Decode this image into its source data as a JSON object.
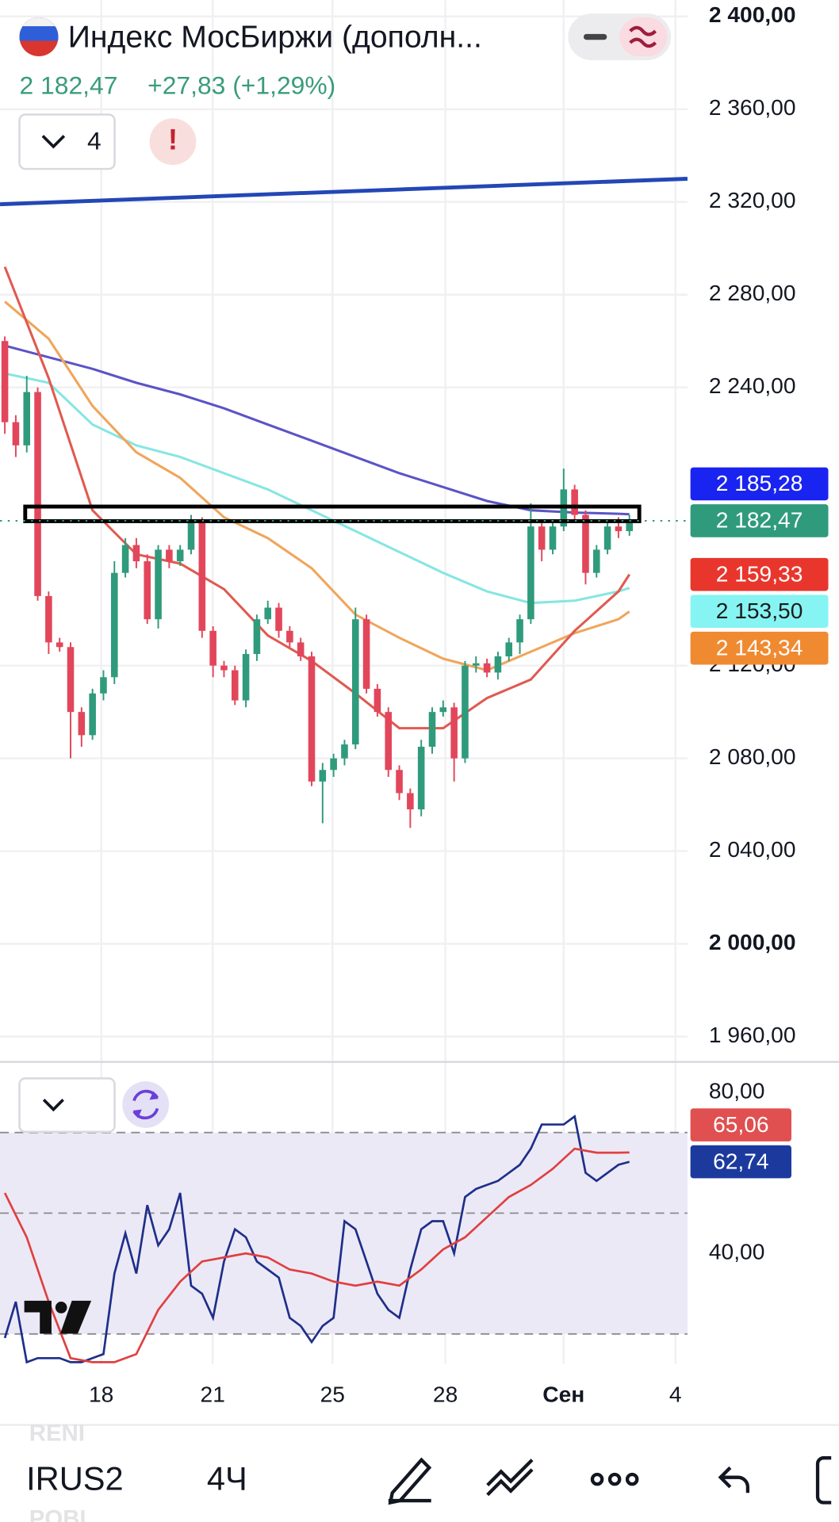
{
  "header": {
    "title": "Индекс МосБиржи (дополн...",
    "price": "2 182,47",
    "change": "+27,83 (+1,29%)",
    "indicators_count": "4",
    "alert": "!"
  },
  "chart_data": [
    {
      "type": "candlestick",
      "xlim": [
        -0.44,
        62.3
      ],
      "xticks": [
        {
          "value": 8.8,
          "label": "18"
        },
        {
          "value": 18.97,
          "label": "21"
        },
        {
          "value": 29.9,
          "label": "25"
        },
        {
          "value": 40.2,
          "label": "28"
        },
        {
          "value": 51,
          "label": "Сен"
        },
        {
          "value": 61.2,
          "label": "4"
        }
      ],
      "ylim": [
        1949.9,
        2407.1
      ],
      "yticks": [
        {
          "value": 2400,
          "label": "2 400,00"
        },
        {
          "value": 2360,
          "label": "2 360,00"
        },
        {
          "value": 2320,
          "label": "2 320,00"
        },
        {
          "value": 2280,
          "label": "2 280,00"
        },
        {
          "value": 2240,
          "label": "2 240,00"
        },
        {
          "value": 2120,
          "label": "2 120,00"
        },
        {
          "value": 2080,
          "label": "2 080,00"
        },
        {
          "value": 2040,
          "label": "2 040,00"
        },
        {
          "value": 2000,
          "label": "2 000,00"
        },
        {
          "value": 1960,
          "label": "1 960,00"
        }
      ],
      "grid": true,
      "up_color": "#2f9b7c",
      "down_color": "#e2465b",
      "open": [
        2260,
        2225,
        2215,
        2238,
        2150,
        2130,
        2128,
        2100,
        2090,
        2108,
        2115,
        2160,
        2172,
        2165,
        2140,
        2170,
        2165,
        2170,
        2182,
        2135,
        2120,
        2118,
        2105,
        2125,
        2140,
        2145,
        2135,
        2130,
        2124,
        2070,
        2075,
        2080,
        2086,
        2140,
        2110,
        2100,
        2075,
        2065,
        2058,
        2085,
        2100,
        2102,
        2080,
        2120,
        2121,
        2117,
        2124,
        2130,
        2140,
        2180,
        2170,
        2180,
        2196,
        2185,
        2160,
        2170,
        2180,
        2178
      ],
      "high": [
        2262,
        2228,
        2245,
        2240,
        2152,
        2132,
        2130,
        2102,
        2110,
        2118,
        2165,
        2175,
        2175,
        2168,
        2172,
        2172,
        2172,
        2185,
        2184,
        2137,
        2122,
        2120,
        2127,
        2142,
        2148,
        2147,
        2137,
        2132,
        2126,
        2078,
        2082,
        2088,
        2145,
        2142,
        2112,
        2102,
        2077,
        2067,
        2088,
        2102,
        2105,
        2104,
        2122,
        2124,
        2123,
        2126,
        2132,
        2142,
        2190,
        2182,
        2183,
        2205,
        2198,
        2187,
        2172,
        2182,
        2184,
        2185
      ],
      "low": [
        2220,
        2210,
        2212,
        2148,
        2125,
        2126,
        2080,
        2085,
        2088,
        2105,
        2112,
        2158,
        2162,
        2138,
        2136,
        2162,
        2163,
        2168,
        2132,
        2115,
        2115,
        2103,
        2102,
        2122,
        2138,
        2132,
        2128,
        2122,
        2068,
        2052,
        2072,
        2077,
        2084,
        2108,
        2098,
        2072,
        2062,
        2050,
        2055,
        2082,
        2098,
        2070,
        2078,
        2117,
        2115,
        2114,
        2122,
        2125,
        2138,
        2165,
        2168,
        2178,
        2183,
        2155,
        2158,
        2168,
        2175,
        2176
      ],
      "close": [
        2225,
        2215,
        2238,
        2150,
        2130,
        2128,
        2100,
        2090,
        2108,
        2115,
        2160,
        2172,
        2165,
        2140,
        2170,
        2165,
        2170,
        2182,
        2135,
        2120,
        2118,
        2105,
        2125,
        2140,
        2145,
        2135,
        2130,
        2124,
        2070,
        2075,
        2080,
        2086,
        2140,
        2110,
        2100,
        2075,
        2065,
        2058,
        2085,
        2100,
        2102,
        2080,
        2120,
        2121,
        2117,
        2124,
        2130,
        2140,
        2180,
        2170,
        2180,
        2196,
        2185,
        2160,
        2170,
        2180,
        2178,
        2182.47
      ],
      "lines": [
        {
          "color": "#5a54c6",
          "x": [
            0,
            4,
            8,
            12,
            16,
            20,
            24,
            28,
            32,
            36,
            40,
            44,
            48,
            52,
            56,
            57
          ],
          "values": [
            2258,
            2253,
            2248,
            2242,
            2237,
            2231,
            2224,
            2217,
            2210,
            2203,
            2197,
            2191,
            2187,
            2186,
            2185.5,
            2185.28
          ]
        },
        {
          "color": "#86e6e2",
          "x": [
            0,
            4,
            8,
            12,
            16,
            20,
            24,
            28,
            32,
            36,
            40,
            44,
            48,
            52,
            56,
            57
          ],
          "values": [
            2246,
            2242,
            2224,
            2215,
            2210,
            2203,
            2196,
            2187,
            2178,
            2169,
            2160,
            2152,
            2147,
            2148,
            2152,
            2153.5
          ]
        },
        {
          "color": "#f0a55a",
          "x": [
            0,
            4,
            8,
            12,
            16,
            20,
            24,
            28,
            32,
            36,
            40,
            44,
            48,
            52,
            56,
            57
          ],
          "values": [
            2277,
            2261,
            2232,
            2212,
            2201,
            2184,
            2175,
            2162,
            2142,
            2132,
            2123,
            2118,
            2126,
            2134,
            2140,
            2143.34
          ]
        },
        {
          "color": "#e05a50",
          "x": [
            0,
            4,
            8,
            12,
            16,
            20,
            24,
            28,
            32,
            36,
            40,
            44,
            48,
            52,
            56,
            57
          ],
          "values": [
            2292,
            2244,
            2187,
            2168,
            2164,
            2153,
            2133,
            2122,
            2108,
            2093,
            2093,
            2106,
            2114,
            2135,
            2152,
            2159.33
          ]
        }
      ],
      "trend_line": {
        "color": "#2347b5",
        "x": [
          -0.44,
          62.3
        ],
        "values": [
          2319,
          2330
        ]
      },
      "zone": {
        "x": [
          1.86,
          57.9
        ],
        "values": [
          2188.6,
          2182.3
        ]
      },
      "price_labels": [
        {
          "value": 2185.28,
          "label": "2 185,28",
          "color": "#1a24f0",
          "text_color": "#ffffff"
        },
        {
          "value": 2182.47,
          "label": "2 182,47",
          "color": "#2f9b7c",
          "text_color": "#ffffff"
        },
        {
          "value": 2159.33,
          "label": "2 159,33",
          "color": "#e8362c",
          "text_color": "#ffffff"
        },
        {
          "value": 2153.5,
          "label": "2 153,50",
          "color": "#86f4f2",
          "text_color": "#1b1b1b"
        },
        {
          "value": 2143.34,
          "label": "2 143,34",
          "color": "#f08a30",
          "text_color": "#ffffff"
        }
      ]
    },
    {
      "type": "line",
      "ylim": [
        12.6,
        87.3
      ],
      "yticks": [
        {
          "value": 80,
          "label": "80,00"
        },
        {
          "value": 40,
          "label": "40,00"
        }
      ],
      "levels": [
        70,
        50,
        20
      ],
      "band": [
        20,
        70
      ],
      "band_color": "#ece9f6",
      "series": [
        {
          "color": "#1e2f8a",
          "x": [
            0,
            1,
            2,
            3,
            4,
            5,
            6,
            7,
            8,
            9,
            10,
            11,
            12,
            13,
            14,
            15,
            16,
            17,
            18,
            19,
            20,
            21,
            22,
            23,
            24,
            25,
            26,
            27,
            28,
            29,
            30,
            31,
            32,
            33,
            34,
            35,
            36,
            37,
            38,
            39,
            40,
            41,
            42,
            43,
            44,
            45,
            46,
            47,
            48,
            49,
            50,
            51,
            52,
            53,
            54,
            55,
            56,
            57
          ],
          "values": [
            19,
            28,
            13,
            14,
            14,
            14,
            13,
            13,
            14,
            15,
            35,
            45,
            35,
            52,
            42,
            46,
            55,
            32,
            30,
            24,
            38,
            46,
            44,
            38,
            36,
            34,
            24,
            22,
            18,
            22,
            24,
            48,
            46,
            38,
            30,
            26,
            24,
            36,
            46,
            48,
            48,
            40,
            54,
            56,
            57,
            58,
            60,
            62,
            66,
            72,
            72,
            72,
            74,
            60,
            58,
            60,
            62,
            62.74
          ]
        },
        {
          "color": "#e04040",
          "x": [
            0,
            2,
            4,
            6,
            8,
            10,
            12,
            14,
            16,
            18,
            20,
            22,
            24,
            26,
            28,
            30,
            32,
            34,
            36,
            38,
            40,
            42,
            44,
            46,
            48,
            50,
            52,
            54,
            56,
            57
          ],
          "values": [
            55,
            44,
            28,
            14,
            13,
            13,
            15,
            26,
            33,
            38,
            39,
            40,
            39,
            36,
            35,
            33,
            32,
            33,
            32,
            36,
            41,
            44,
            49,
            54,
            57,
            61,
            66,
            65,
            65,
            65.06
          ]
        }
      ],
      "price_labels": [
        {
          "value": 65.06,
          "label": "65,06",
          "color": "#e05050",
          "text_color": "#ffffff"
        },
        {
          "value": 62.74,
          "label": "62,74",
          "color": "#1c3a9e",
          "text_color": "#ffffff"
        }
      ]
    }
  ],
  "toolbar": {
    "symbol": "IRUS2",
    "interval": "4Ч"
  },
  "watchlist": [
    "RENI",
    "POBI"
  ]
}
